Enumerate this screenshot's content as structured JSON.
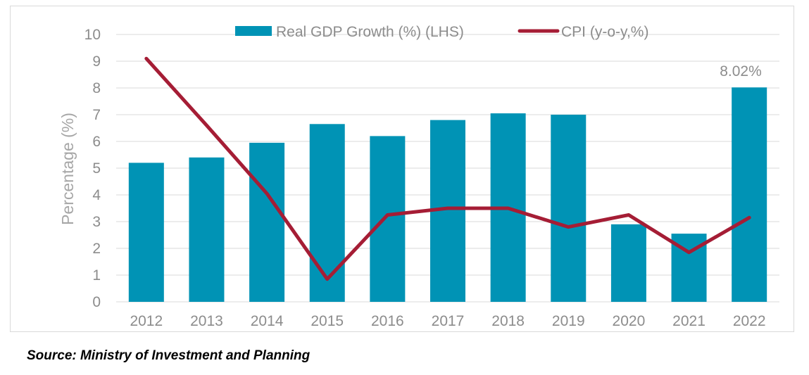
{
  "colors": {
    "bar": "#0093b5",
    "line": "#a51d35",
    "grid": "#d9d9d9",
    "text": "#8c8c8c"
  },
  "chart_data": {
    "type": "bar",
    "categories": [
      "2012",
      "2013",
      "2014",
      "2015",
      "2016",
      "2017",
      "2018",
      "2019",
      "2020",
      "2021",
      "2022"
    ],
    "series": [
      {
        "name": "Real GDP Growth (%) (LHS)",
        "type": "bar",
        "values": [
          5.2,
          5.4,
          5.95,
          6.65,
          6.2,
          6.8,
          7.05,
          7.0,
          2.9,
          2.55,
          8.02
        ]
      },
      {
        "name": "CPI (y-o-y,%)",
        "type": "line",
        "values": [
          9.1,
          6.6,
          4.05,
          0.85,
          3.25,
          3.5,
          3.5,
          2.8,
          3.25,
          1.85,
          3.15
        ]
      }
    ],
    "ylabel": "Percentage (%)",
    "ylim": [
      0,
      10
    ],
    "yticks": [
      "0",
      "1",
      "2",
      "3",
      "4",
      "5",
      "6",
      "7",
      "8",
      "9",
      "10"
    ],
    "annotation": "8.02%",
    "legend_position": "top",
    "grid": true
  },
  "source": "Source: Ministry of Investment and Planning"
}
